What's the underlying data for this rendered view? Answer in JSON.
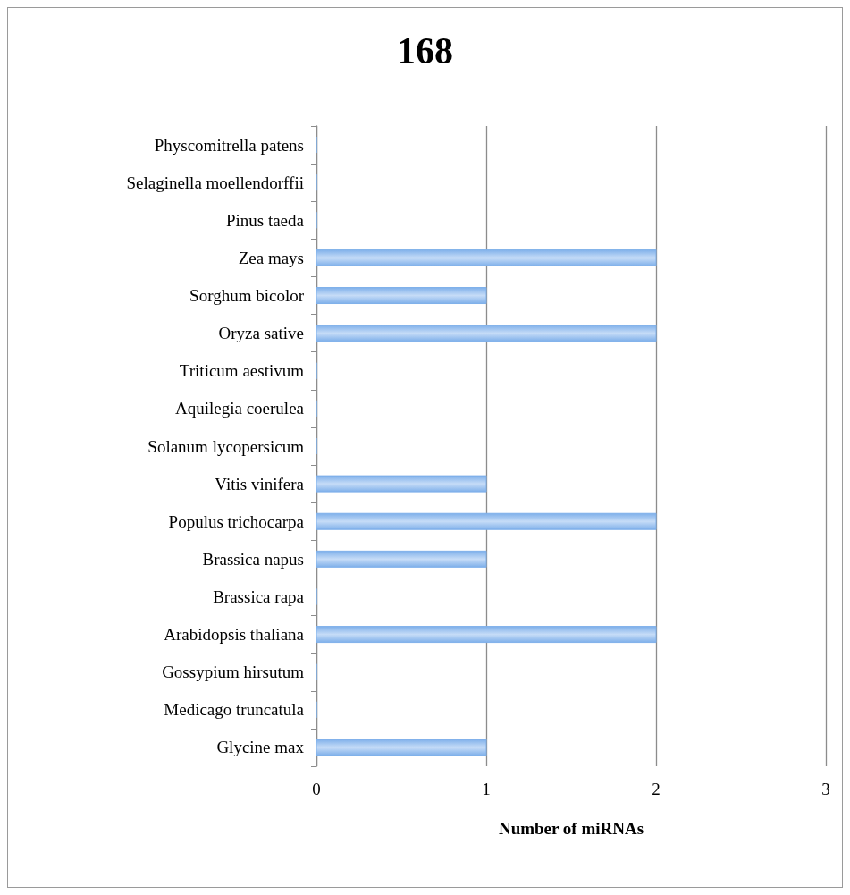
{
  "chart_data": {
    "type": "bar",
    "orientation": "horizontal",
    "title": "168",
    "xlabel": "Number of miRNAs",
    "categories": [
      "Physcomitrella patens",
      "Selaginella moellendorffii",
      "Pinus taeda",
      "Zea mays",
      "Sorghum bicolor",
      "Oryza sative",
      "Triticum aestivum",
      "Aquilegia coerulea",
      "Solanum lycopersicum",
      "Vitis vinifera",
      "Populus trichocarpa",
      "Brassica napus",
      "Brassica rapa",
      "Arabidopsis thaliana",
      "Gossypium hirsutum",
      "Medicago truncatula",
      "Glycine max"
    ],
    "values": [
      0,
      0,
      0,
      2,
      1,
      2,
      0,
      0,
      0,
      1,
      2,
      1,
      0,
      2,
      0,
      0,
      1
    ],
    "color": "#7fb0ea",
    "xlim": [
      0,
      3
    ],
    "xticks": [
      0,
      1,
      2,
      3
    ],
    "grid": "x"
  }
}
